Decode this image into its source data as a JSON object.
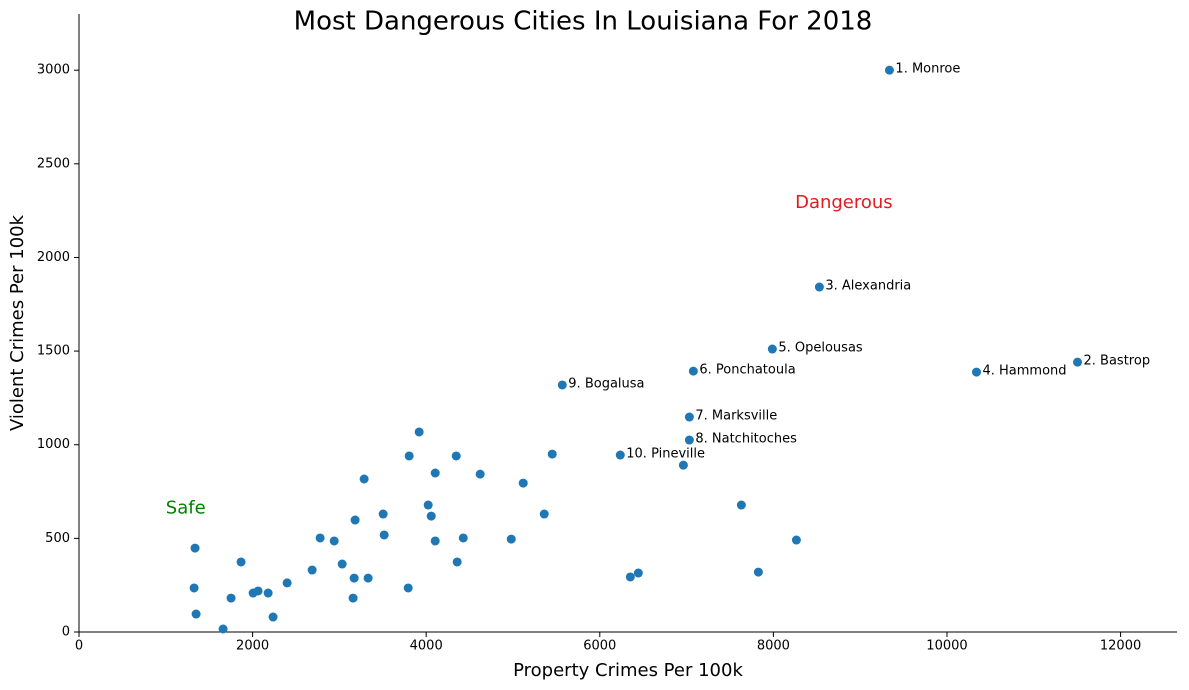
{
  "chart_data": {
    "type": "scatter",
    "title": "Most Dangerous Cities In Louisiana For 2018",
    "x_label": "Property Crimes Per 100k",
    "y_label": "Violent Crimes Per 100k",
    "xlim": [
      0,
      12650
    ],
    "ylim": [
      0,
      3300
    ],
    "xticks": [
      0,
      2000,
      4000,
      6000,
      8000,
      10000,
      12000
    ],
    "yticks": [
      0,
      500,
      1000,
      1500,
      2000,
      2500,
      3000
    ],
    "grid": false,
    "series": [
      {
        "color": "#1f77b4",
        "x": [
          9337,
          11504,
          8530,
          10340,
          7988,
          7078,
          7032,
          5568,
          7032,
          6236,
          6963,
          7631,
          8265,
          7827,
          6444,
          6352,
          5452,
          5118,
          5360,
          4980,
          4622,
          4427,
          4346,
          4357,
          3919,
          4104,
          3804,
          4023,
          4058,
          4104,
          3285,
          3504,
          3516,
          3181,
          2940,
          2778,
          3032,
          3170,
          3331,
          3158,
          3793,
          2686,
          2398,
          2236,
          1337,
          1867,
          1326,
          1349,
          1752,
          2006,
          2063,
          2179,
          1660
        ],
        "values": [
          3000,
          1441,
          1842,
          1388,
          1511,
          1393,
          1148,
          1319,
          1025,
          945,
          891,
          678,
          491,
          320,
          315,
          294,
          950,
          795,
          630,
          496,
          843,
          502,
          940,
          374,
          1068,
          849,
          940,
          678,
          619,
          486,
          817,
          630,
          518,
          598,
          486,
          502,
          363,
          288,
          288,
          181,
          235,
          331,
          262,
          80,
          448,
          374,
          235,
          96,
          181,
          208,
          219,
          208,
          16
        ],
        "labels": [
          "1. Monroe",
          "2. Bastrop",
          "3. Alexandria",
          "4. Hammond",
          "5. Opelousas",
          "6. Ponchatoula",
          "7. Marksville",
          "9. Bogalusa",
          "8. Natchitoches",
          "10. Pineville",
          null,
          null,
          null,
          null,
          null,
          null,
          null,
          null,
          null,
          null,
          null,
          null,
          null,
          null,
          null,
          null,
          null,
          null,
          null,
          null,
          null,
          null,
          null,
          null,
          null,
          null,
          null,
          null,
          null,
          null,
          null,
          null,
          null,
          null,
          null,
          null,
          null,
          null,
          null,
          null,
          null,
          null,
          null
        ]
      }
    ],
    "annotations": [
      {
        "text": "Dangerous",
        "x": 8250,
        "y": 2290,
        "color": "#e41a1c"
      },
      {
        "text": "Safe",
        "x": 1000,
        "y": 660,
        "color": "#008000"
      }
    ]
  }
}
